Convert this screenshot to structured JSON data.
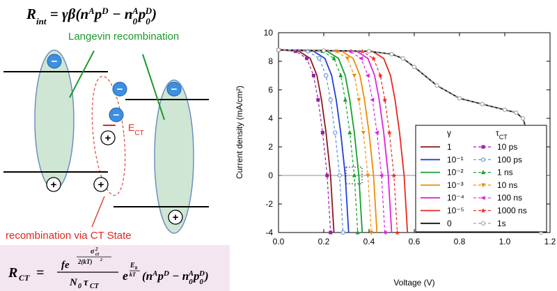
{
  "diagram": {
    "equation_top": [
      "R",
      "int",
      " = γβ(",
      "n",
      "A",
      "p",
      "D",
      " − ",
      "n",
      "0",
      "A",
      "p",
      "0",
      "D",
      ")"
    ],
    "langevin_label": "Langevin recombination",
    "ect_label": [
      "E",
      "CT"
    ],
    "ct_label": "recombination via CT State",
    "charges": {
      "minus": "−",
      "plus": "+"
    },
    "equation_bottom": [
      "R",
      "CT",
      "=",
      "fe",
      "σ",
      "2",
      "ct",
      "2(kT)",
      "2",
      "N",
      "0",
      "τ",
      "CT",
      "e",
      "E",
      "b",
      "kT",
      "(n",
      "A",
      "p",
      "D",
      " − n",
      "0",
      "A",
      "p",
      "0",
      "D",
      ")"
    ]
  },
  "chart_data": {
    "type": "line",
    "xlabel": "Voltage (V)",
    "ylabel": "Current density (mA/cm²)",
    "xlim": [
      0,
      1.2
    ],
    "ylim": [
      -4,
      10
    ],
    "xticks": [
      {
        "value": 0,
        "label": "0.0"
      },
      0.2,
      0.4,
      0.6,
      0.8,
      {
        "value": 1,
        "label": "1.0"
      },
      1.2
    ],
    "yticks": [
      -4,
      -2,
      0,
      2,
      4,
      6,
      8,
      10
    ],
    "legend_headers": [
      "γ",
      "τ",
      "CT"
    ],
    "legend": "lower right",
    "series": [
      {
        "name": "1",
        "color": "#8b1a1a",
        "linestyle": "solid",
        "x": [
          0,
          0.09,
          0.14,
          0.17,
          0.19,
          0.21,
          0.23,
          0.245
        ],
        "values": [
          8.8,
          8.7,
          8.2,
          7.0,
          5.3,
          3.0,
          0,
          -4
        ]
      },
      {
        "name": "10⁻¹",
        "color": "#1f3fd6",
        "linestyle": "solid",
        "x": [
          0,
          0.155,
          0.205,
          0.235,
          0.255,
          0.275,
          0.295,
          0.31
        ],
        "values": [
          8.8,
          8.7,
          8.2,
          7.0,
          5.3,
          3.0,
          0,
          -4
        ]
      },
      {
        "name": "10⁻²",
        "color": "#13a02c",
        "linestyle": "solid",
        "x": [
          0,
          0.215,
          0.265,
          0.295,
          0.315,
          0.335,
          0.355,
          0.37
        ],
        "values": [
          8.8,
          8.7,
          8.2,
          7.0,
          5.3,
          3.0,
          0,
          -4
        ]
      },
      {
        "name": "10⁻³",
        "color": "#f08c00",
        "linestyle": "solid",
        "x": [
          0,
          0.28,
          0.33,
          0.36,
          0.38,
          0.4,
          0.42,
          0.435
        ],
        "values": [
          8.8,
          8.7,
          8.2,
          7.0,
          5.3,
          3.0,
          0,
          -4
        ]
      },
      {
        "name": "10⁻⁴",
        "color": "#e020e0",
        "linestyle": "solid",
        "x": [
          0,
          0.345,
          0.395,
          0.425,
          0.445,
          0.465,
          0.485,
          0.5
        ],
        "values": [
          8.8,
          8.7,
          8.2,
          7.0,
          5.3,
          3.0,
          0,
          -4
        ]
      },
      {
        "name": "10⁻⁵",
        "color": "#e8261c",
        "linestyle": "solid",
        "x": [
          0,
          0.415,
          0.465,
          0.495,
          0.515,
          0.535,
          0.555,
          0.57
        ],
        "values": [
          8.8,
          8.7,
          8.2,
          7.0,
          5.3,
          3.0,
          0,
          -4
        ]
      },
      {
        "name": "0",
        "color": "#111111",
        "linestyle": "solid",
        "x": [
          0,
          0.2,
          0.4,
          0.5,
          0.55,
          0.6,
          0.7,
          0.8,
          0.9,
          1.0,
          1.05,
          1.08,
          1.1,
          1.12,
          1.14,
          1.15,
          1.16
        ],
        "values": [
          8.8,
          8.75,
          8.7,
          8.5,
          8.2,
          7.6,
          6.3,
          5.4,
          5.0,
          4.6,
          4.4,
          4.0,
          3.0,
          1.5,
          0.5,
          0,
          -4
        ]
      },
      {
        "name": "10 ps",
        "color": "#9b1fa8",
        "linestyle": "dashed",
        "marker": "square",
        "x": [
          0,
          0.075,
          0.125,
          0.155,
          0.175,
          0.195,
          0.215,
          0.23
        ],
        "values": [
          8.8,
          8.7,
          8.2,
          7.0,
          5.3,
          3.0,
          0,
          -4
        ]
      },
      {
        "name": "100 ps",
        "color": "#5a8be0",
        "linestyle": "dashed",
        "marker": "open-circle",
        "x": [
          0,
          0.13,
          0.18,
          0.21,
          0.23,
          0.25,
          0.27,
          0.285
        ],
        "values": [
          8.8,
          8.7,
          8.2,
          7.0,
          5.3,
          3.0,
          0,
          -4
        ]
      },
      {
        "name": "1 ns",
        "color": "#13a02c",
        "linestyle": "dashed",
        "marker": "triangle-up",
        "x": [
          0,
          0.195,
          0.245,
          0.275,
          0.295,
          0.315,
          0.335,
          0.35
        ],
        "values": [
          8.8,
          8.7,
          8.2,
          7.0,
          5.3,
          3.0,
          0,
          -4
        ]
      },
      {
        "name": "10 ns",
        "color": "#f08c00",
        "linestyle": "dashed",
        "marker": "triangle-down",
        "x": [
          0,
          0.255,
          0.305,
          0.335,
          0.355,
          0.375,
          0.395,
          0.41
        ],
        "values": [
          8.8,
          8.7,
          8.2,
          7.0,
          5.3,
          3.0,
          0,
          -4
        ]
      },
      {
        "name": "100 ns",
        "color": "#e020e0",
        "linestyle": "dashed",
        "marker": "triangle-left",
        "x": [
          0,
          0.315,
          0.365,
          0.395,
          0.415,
          0.435,
          0.455,
          0.47
        ],
        "values": [
          8.8,
          8.7,
          8.2,
          7.0,
          5.3,
          3.0,
          0,
          -4
        ]
      },
      {
        "name": "1000 ns",
        "color": "#e8261c",
        "linestyle": "dashed",
        "marker": "star",
        "x": [
          0,
          0.37,
          0.42,
          0.45,
          0.47,
          0.49,
          0.51,
          0.525
        ],
        "values": [
          8.8,
          8.7,
          8.2,
          7.0,
          5.3,
          3.0,
          0,
          -4
        ]
      },
      {
        "name": "1s",
        "color": "#999999",
        "linestyle": "dashed",
        "marker": "open-circle",
        "x": [
          0,
          0.2,
          0.4,
          0.5,
          0.55,
          0.6,
          0.7,
          0.8,
          0.9,
          1.0,
          1.05,
          1.08,
          1.1,
          1.12,
          1.14,
          1.15,
          1.16
        ],
        "values": [
          8.8,
          8.75,
          8.7,
          8.5,
          8.2,
          7.6,
          6.3,
          5.4,
          5.0,
          4.6,
          4.4,
          4.0,
          3.0,
          1.5,
          0.5,
          0,
          -4
        ]
      }
    ]
  }
}
